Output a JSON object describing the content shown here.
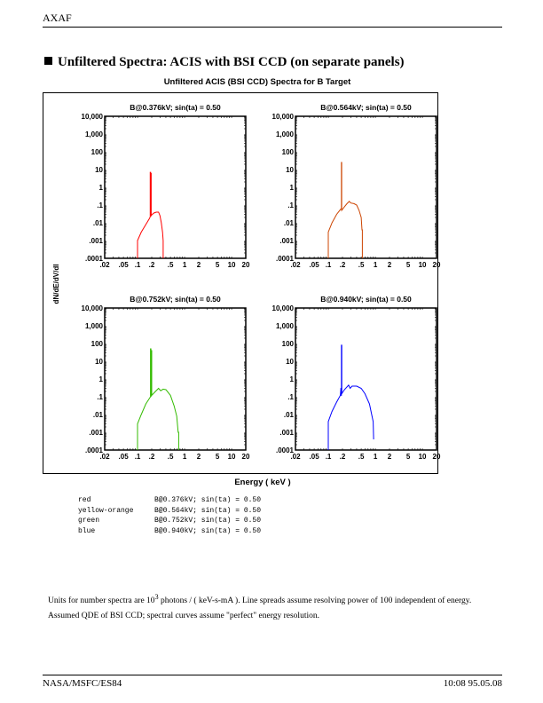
{
  "header": {
    "title": "AXAF"
  },
  "section": {
    "title": "Unfiltered Spectra:  ACIS with BSI CCD (on separate panels)"
  },
  "chart_data": {
    "type": "line",
    "title": "Unfiltered ACIS (BSI CCD) Spectra for B Target",
    "xlabel": "Energy ( keV )",
    "ylabel": "dN/dE/dV/dI",
    "xscale": "log",
    "yscale": "log",
    "xlim": [
      0.02,
      20
    ],
    "ylim": [
      0.0001,
      10000
    ],
    "xticks": [
      {
        "v": 0.02,
        "label": ".02"
      },
      {
        "v": 0.05,
        "label": ".05"
      },
      {
        "v": 0.1,
        "label": ".1"
      },
      {
        "v": 0.2,
        "label": ".2"
      },
      {
        "v": 0.5,
        "label": ".5"
      },
      {
        "v": 1,
        "label": "1"
      },
      {
        "v": 2,
        "label": "2"
      },
      {
        "v": 5,
        "label": "5"
      },
      {
        "v": 10,
        "label": "10"
      },
      {
        "v": 20,
        "label": "20"
      }
    ],
    "yticks": [
      {
        "v": 10000,
        "label": "10,000"
      },
      {
        "v": 1000,
        "label": "1,000"
      },
      {
        "v": 100,
        "label": "100"
      },
      {
        "v": 10,
        "label": "10"
      },
      {
        "v": 1,
        "label": "1"
      },
      {
        "v": 0.1,
        "label": ".1"
      },
      {
        "v": 0.01,
        "label": ".01"
      },
      {
        "v": 0.001,
        "label": ".001"
      },
      {
        "v": 0.0001,
        "label": ".0001"
      }
    ],
    "panels": [
      {
        "title": "B@0.376kV; sin(ta) = 0.50",
        "color": "#ff0000",
        "points": [
          [
            0.1,
            0.0001
          ],
          [
            0.1,
            0.001
          ],
          [
            0.12,
            0.003
          ],
          [
            0.15,
            0.008
          ],
          [
            0.18,
            0.018
          ],
          [
            0.186,
            0.022
          ],
          [
            0.186,
            7
          ],
          [
            0.19,
            7
          ],
          [
            0.19,
            0.024
          ],
          [
            0.193,
            0.024
          ],
          [
            0.193,
            6
          ],
          [
            0.195,
            6
          ],
          [
            0.195,
            0.026
          ],
          [
            0.22,
            0.035
          ],
          [
            0.25,
            0.04
          ],
          [
            0.28,
            0.04
          ],
          [
            0.3,
            0.025
          ],
          [
            0.32,
            0.01
          ],
          [
            0.34,
            0.003
          ],
          [
            0.35,
            0.001
          ],
          [
            0.35,
            0.0001
          ]
        ]
      },
      {
        "title": "B@0.564kV; sin(ta) = 0.50",
        "color": "#cc4400",
        "points": [
          [
            0.1,
            0.0001
          ],
          [
            0.1,
            0.003
          ],
          [
            0.12,
            0.01
          ],
          [
            0.15,
            0.03
          ],
          [
            0.185,
            0.06
          ],
          [
            0.19,
            0.06
          ],
          [
            0.19,
            25
          ],
          [
            0.192,
            25
          ],
          [
            0.192,
            0.05
          ],
          [
            0.22,
            0.08
          ],
          [
            0.25,
            0.12
          ],
          [
            0.28,
            0.16
          ],
          [
            0.3,
            0.13
          ],
          [
            0.35,
            0.12
          ],
          [
            0.4,
            0.1
          ],
          [
            0.45,
            0.05
          ],
          [
            0.5,
            0.02
          ],
          [
            0.52,
            0.004
          ],
          [
            0.53,
            0.004
          ],
          [
            0.53,
            0.0001
          ]
        ]
      },
      {
        "title": "B@0.752kV; sin(ta) = 0.50",
        "color": "#33bb00",
        "points": [
          [
            0.1,
            0.0001
          ],
          [
            0.1,
            0.003
          ],
          [
            0.12,
            0.01
          ],
          [
            0.15,
            0.04
          ],
          [
            0.188,
            0.1
          ],
          [
            0.188,
            50
          ],
          [
            0.192,
            50
          ],
          [
            0.192,
            0.11
          ],
          [
            0.196,
            0.11
          ],
          [
            0.196,
            40
          ],
          [
            0.2,
            40
          ],
          [
            0.2,
            0.12
          ],
          [
            0.24,
            0.2
          ],
          [
            0.28,
            0.3
          ],
          [
            0.31,
            0.22
          ],
          [
            0.35,
            0.27
          ],
          [
            0.4,
            0.25
          ],
          [
            0.5,
            0.12
          ],
          [
            0.6,
            0.03
          ],
          [
            0.68,
            0.008
          ],
          [
            0.73,
            0.001
          ],
          [
            0.75,
            0.001
          ],
          [
            0.75,
            0.0001
          ]
        ]
      },
      {
        "title": "B@0.940kV; sin(ta) = 0.50",
        "color": "#0000ff",
        "points": [
          [
            0.1,
            0.0001
          ],
          [
            0.1,
            0.004
          ],
          [
            0.12,
            0.015
          ],
          [
            0.15,
            0.05
          ],
          [
            0.18,
            0.12
          ],
          [
            0.185,
            0.3
          ],
          [
            0.188,
            0.3
          ],
          [
            0.188,
            0.12
          ],
          [
            0.19,
            0.12
          ],
          [
            0.19,
            80
          ],
          [
            0.193,
            80
          ],
          [
            0.193,
            0.15
          ],
          [
            0.22,
            0.25
          ],
          [
            0.27,
            0.45
          ],
          [
            0.29,
            0.3
          ],
          [
            0.32,
            0.4
          ],
          [
            0.4,
            0.4
          ],
          [
            0.5,
            0.3
          ],
          [
            0.6,
            0.15
          ],
          [
            0.75,
            0.04
          ],
          [
            0.85,
            0.008
          ],
          [
            0.9,
            0.004
          ],
          [
            0.92,
            0.0004
          ]
        ]
      }
    ]
  },
  "legend": [
    {
      "color_name": "red",
      "desc": "B@0.376kV; sin(ta) = 0.50"
    },
    {
      "color_name": "yellow-orange",
      "desc": "B@0.564kV; sin(ta) = 0.50"
    },
    {
      "color_name": "green",
      "desc": "B@0.752kV; sin(ta) = 0.50"
    },
    {
      "color_name": "blue",
      "desc": "B@0.940kV; sin(ta) = 0.50"
    }
  ],
  "note": {
    "part1": "Units for number spectra are 10",
    "exp": "3",
    "part2": " photons / ( keV-s-mA ).  Line spreads assume resolving power of 100 independent of energy.   Assumed QDE of BSI CCD; spectral curves assume \"perfect\" energy resolution."
  },
  "footer": {
    "left": "NASA/MSFC/ES84",
    "right": "10:08  95.05.08"
  }
}
